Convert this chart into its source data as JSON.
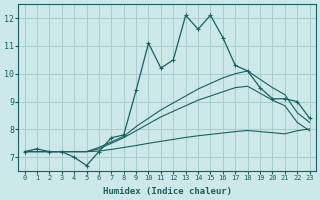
{
  "xlabel": "Humidex (Indice chaleur)",
  "bg_color": "#cce8e8",
  "grid_color": "#aacccc",
  "line_color": "#1a6060",
  "xlim": [
    -0.5,
    23.5
  ],
  "ylim": [
    6.5,
    12.5
  ],
  "yticks": [
    7,
    8,
    9,
    10,
    11,
    12
  ],
  "xticks": [
    0,
    1,
    2,
    3,
    4,
    5,
    6,
    7,
    8,
    9,
    10,
    11,
    12,
    13,
    14,
    15,
    16,
    17,
    18,
    19,
    20,
    21,
    22,
    23
  ],
  "hours": [
    0,
    1,
    2,
    3,
    4,
    5,
    6,
    7,
    8,
    9,
    10,
    11,
    12,
    13,
    14,
    15,
    16,
    17,
    18,
    19,
    20,
    21,
    22,
    23
  ],
  "line_main": [
    7.2,
    7.3,
    7.2,
    7.2,
    7.0,
    6.7,
    7.2,
    7.7,
    7.8,
    9.4,
    11.1,
    10.2,
    10.5,
    12.1,
    11.6,
    12.1,
    11.3,
    10.3,
    10.1,
    9.5,
    9.1,
    9.1,
    9.0,
    8.4
  ],
  "line_upper": [
    7.2,
    7.2,
    7.2,
    7.2,
    7.2,
    7.2,
    7.35,
    7.55,
    7.75,
    8.1,
    8.4,
    8.7,
    8.95,
    9.2,
    9.45,
    9.65,
    9.85,
    10.0,
    10.1,
    9.8,
    9.5,
    9.25,
    8.6,
    8.25
  ],
  "line_mid": [
    7.2,
    7.2,
    7.2,
    7.2,
    7.2,
    7.2,
    7.3,
    7.5,
    7.7,
    7.95,
    8.2,
    8.45,
    8.65,
    8.85,
    9.05,
    9.2,
    9.35,
    9.5,
    9.55,
    9.3,
    9.05,
    8.85,
    8.25,
    7.95
  ],
  "line_lower": [
    7.2,
    7.2,
    7.2,
    7.2,
    7.2,
    7.2,
    7.22,
    7.28,
    7.35,
    7.42,
    7.5,
    7.57,
    7.64,
    7.71,
    7.77,
    7.82,
    7.87,
    7.92,
    7.96,
    7.92,
    7.88,
    7.84,
    7.95,
    8.02
  ]
}
